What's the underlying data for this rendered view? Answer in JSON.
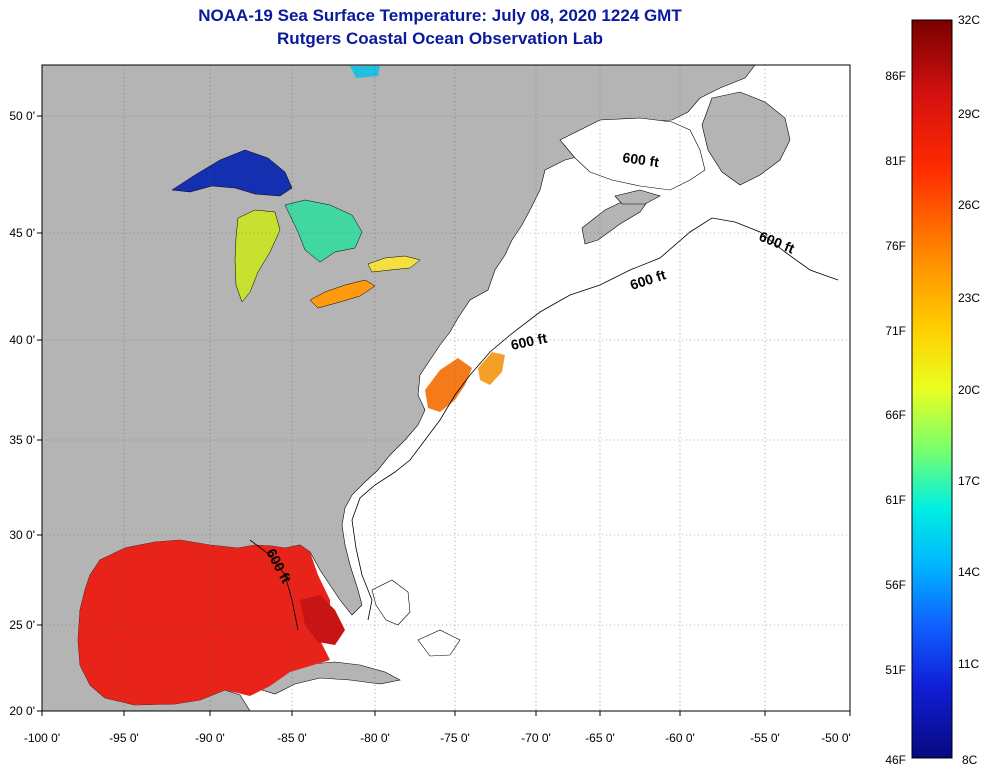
{
  "title_line1": "NOAA-19 Sea Surface Temperature:  July 08, 2020 1224 GMT",
  "title_line2": "Rutgers Coastal Ocean Observation Lab",
  "x_ticks": [
    "-100 0'",
    "-95 0'",
    "-90 0'",
    "-85 0'",
    "-80 0'",
    "-75 0'",
    "-70 0'",
    "-65 0'",
    "-60 0'",
    "-55 0'",
    "-50 0'"
  ],
  "y_ticks": [
    "50 0'",
    "45 0'",
    "40 0'",
    "35 0'",
    "30 0'",
    "25 0'",
    "20 0'"
  ],
  "contour_label": "600 ft",
  "colorbar": {
    "celsius": [
      "32C",
      "29C",
      "26C",
      "23C",
      "20C",
      "17C",
      "14C",
      "11C",
      "8C"
    ],
    "fahrenheit": [
      "86F",
      "81F",
      "76F",
      "71F",
      "66F",
      "61F",
      "56F",
      "51F",
      "46F"
    ]
  },
  "colors": {
    "land": "#b4b4b4",
    "ocean": "#ffffff",
    "title": "#0a1a9c",
    "warm_gulf": "#e8231a"
  }
}
